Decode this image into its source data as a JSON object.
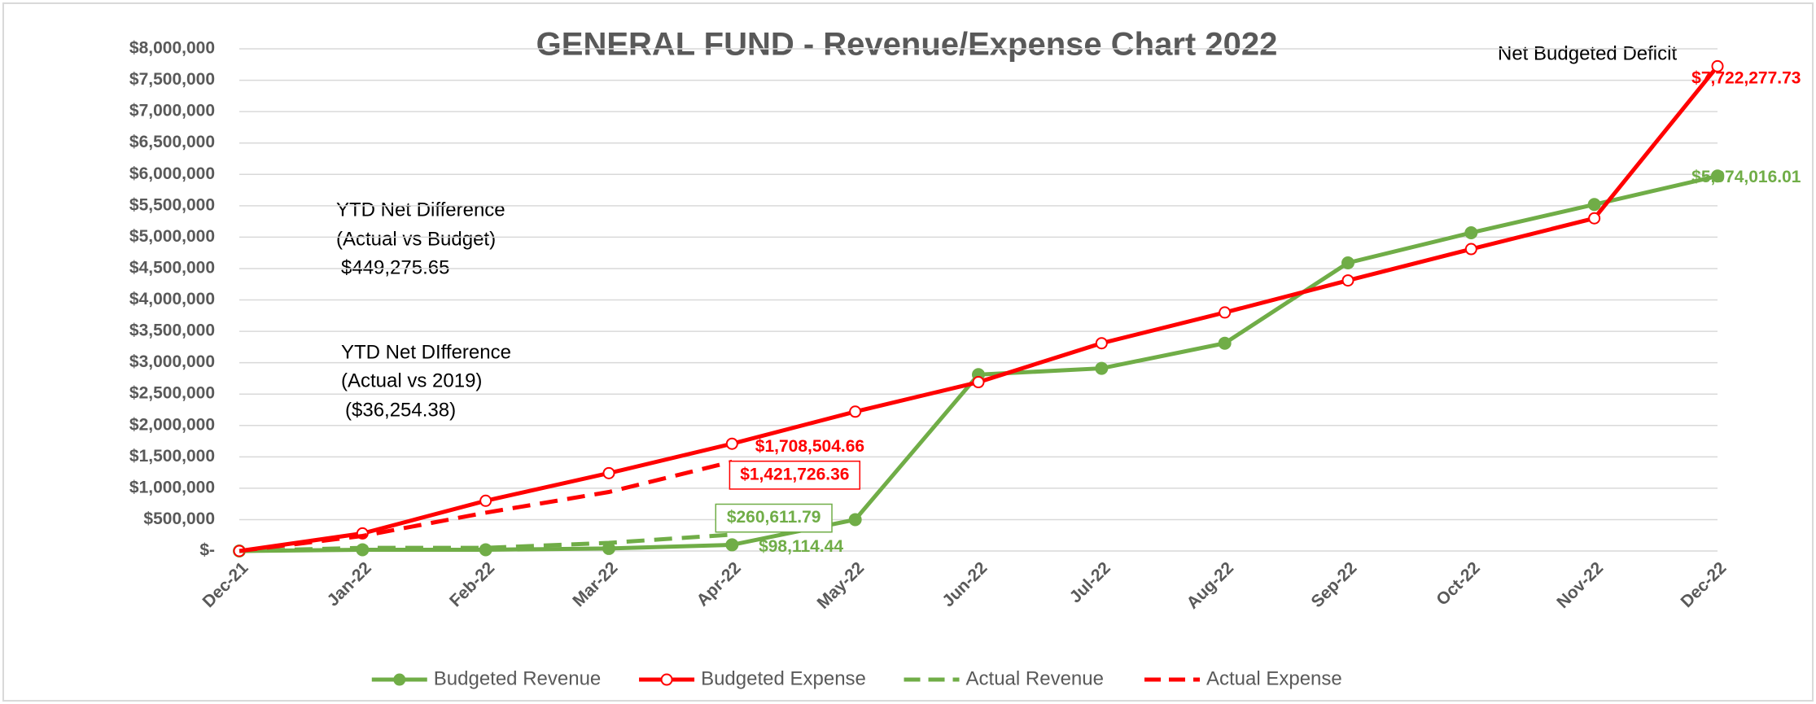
{
  "chart_data": {
    "type": "line",
    "title": "GENERAL FUND - Revenue/Expense Chart 2022",
    "categories": [
      "Dec-21",
      "Jan-22",
      "Feb-22",
      "Mar-22",
      "Apr-22",
      "May-22",
      "Jun-22",
      "Jul-22",
      "Aug-22",
      "Sep-22",
      "Oct-22",
      "Nov-22",
      "Dec-22"
    ],
    "series": [
      {
        "name": "Budgeted Revenue",
        "color": "#70ad47",
        "style": "solid",
        "marker": "filled",
        "values": [
          0,
          20000,
          20000,
          40000,
          98114.44,
          500000,
          2810000,
          2910000,
          3310000,
          4590000,
          5070000,
          5520000,
          5974016.01
        ],
        "value_labels": [
          null,
          null,
          null,
          null,
          "$98,114.44",
          null,
          null,
          null,
          null,
          null,
          null,
          null,
          "$5,974,016.01"
        ]
      },
      {
        "name": "Budgeted Expense",
        "color": "#ff0000",
        "style": "solid",
        "marker": "hollow",
        "values": [
          0,
          280000,
          800000,
          1240000,
          1708504.66,
          2220000,
          2690000,
          3310000,
          3800000,
          4310000,
          4810000,
          5300000,
          7722277.73
        ],
        "value_labels": [
          null,
          null,
          null,
          null,
          "$1,708,504.66",
          null,
          null,
          null,
          null,
          null,
          null,
          null,
          "$7,722,277.73"
        ]
      },
      {
        "name": "Actual Revenue",
        "color": "#70ad47",
        "style": "dashed",
        "marker": "none",
        "values": [
          0,
          50000,
          50000,
          130000,
          260611.79,
          null,
          null,
          null,
          null,
          null,
          null,
          null,
          null
        ],
        "value_labels": [
          null,
          null,
          null,
          null,
          "$260,611.79",
          null,
          null,
          null,
          null,
          null,
          null,
          null,
          null
        ]
      },
      {
        "name": "Actual Expense",
        "color": "#ff0000",
        "style": "dashed",
        "marker": "none",
        "values": [
          0,
          240000,
          610000,
          940000,
          1421726.36,
          null,
          null,
          null,
          null,
          null,
          null,
          null,
          null
        ],
        "value_labels": [
          null,
          null,
          null,
          null,
          "$1,421,726.36",
          null,
          null,
          null,
          null,
          null,
          null,
          null,
          null
        ]
      }
    ],
    "ylim": [
      0,
      8000000
    ],
    "yticks": [
      {
        "value": 0,
        "label": "$-"
      },
      {
        "value": 500000,
        "label": "$500,000"
      },
      {
        "value": 1000000,
        "label": "$1,000,000"
      },
      {
        "value": 1500000,
        "label": "$1,500,000"
      },
      {
        "value": 2000000,
        "label": "$2,000,000"
      },
      {
        "value": 2500000,
        "label": "$2,500,000"
      },
      {
        "value": 3000000,
        "label": "$3,000,000"
      },
      {
        "value": 3500000,
        "label": "$3,500,000"
      },
      {
        "value": 4000000,
        "label": "$4,000,000"
      },
      {
        "value": 4500000,
        "label": "$4,500,000"
      },
      {
        "value": 5000000,
        "label": "$5,000,000"
      },
      {
        "value": 5500000,
        "label": "$5,500,000"
      },
      {
        "value": 6000000,
        "label": "$6,000,000"
      },
      {
        "value": 6500000,
        "label": "$6,500,000"
      },
      {
        "value": 7000000,
        "label": "$7,000,000"
      },
      {
        "value": 7500000,
        "label": "$7,500,000"
      },
      {
        "value": 8000000,
        "label": "$8,000,000"
      }
    ],
    "grid": true,
    "legend": "bottom",
    "annotations": [
      "Net Budgeted Deficit",
      "YTD Net Difference",
      "(Actual vs Budget)",
      "$449,275.65",
      "YTD Net DIfference",
      "(Actual vs 2019)",
      "($36,254.38)"
    ]
  }
}
